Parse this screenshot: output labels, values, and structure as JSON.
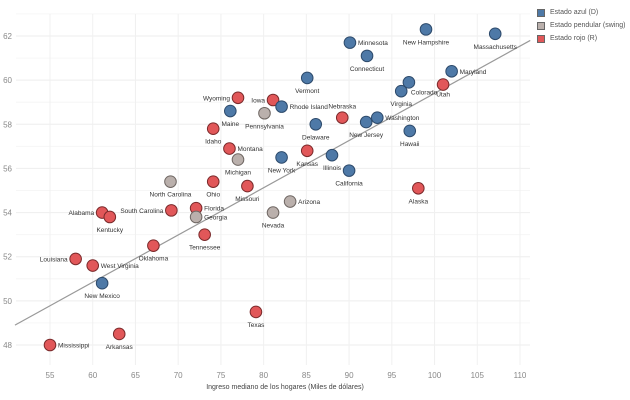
{
  "chart_data": {
    "type": "scatter",
    "title": "",
    "xlabel": "Ingreso mediano de los hogares (Miles de dólares)",
    "ylabel": "",
    "xlim": [
      51,
      112
    ],
    "ylim": [
      47,
      63
    ],
    "xticks": [
      55,
      60,
      65,
      70,
      75,
      80,
      85,
      90,
      95,
      100,
      105,
      110
    ],
    "yticks": [
      48,
      50,
      52,
      54,
      56,
      58,
      60,
      62
    ],
    "grid": true,
    "legend_position": "top-right",
    "legend": [
      {
        "key": "D",
        "label": "Estado azul (D)",
        "color": "#4e79a7"
      },
      {
        "key": "S",
        "label": "Estado pendular (swing)",
        "color": "#bab0ac"
      },
      {
        "key": "R",
        "label": "Estado rojo (R)",
        "color": "#e15759"
      }
    ],
    "trend_line": {
      "x": [
        50.9,
        111.2
      ],
      "y": [
        48.9,
        61.8
      ]
    },
    "points": [
      {
        "name": "Mississippi",
        "x": 55.0,
        "y": 48.0,
        "group": "R",
        "label_pos": "right"
      },
      {
        "name": "Arkansas",
        "x": 63.1,
        "y": 48.5,
        "group": "R",
        "label_pos": "below"
      },
      {
        "name": "Texas",
        "x": 79.1,
        "y": 49.5,
        "group": "R",
        "label_pos": "below"
      },
      {
        "name": "New Mexico",
        "x": 61.1,
        "y": 50.8,
        "group": "D",
        "label_pos": "below"
      },
      {
        "name": "Louisiana",
        "x": 58.0,
        "y": 51.9,
        "group": "R",
        "label_pos": "left"
      },
      {
        "name": "West Virginia",
        "x": 60.0,
        "y": 51.6,
        "group": "R",
        "label_pos": "right"
      },
      {
        "name": "Oklahoma",
        "x": 67.1,
        "y": 52.5,
        "group": "R",
        "label_pos": "below"
      },
      {
        "name": "Tennessee",
        "x": 73.1,
        "y": 53.0,
        "group": "R",
        "label_pos": "below"
      },
      {
        "name": "Alabama",
        "x": 61.1,
        "y": 54.0,
        "group": "R",
        "label_pos": "left"
      },
      {
        "name": "Kentucky",
        "x": 62.0,
        "y": 53.8,
        "group": "R",
        "label_pos": "below"
      },
      {
        "name": "South Carolina",
        "x": 69.2,
        "y": 54.1,
        "group": "R",
        "label_pos": "left"
      },
      {
        "name": "Florida",
        "x": 72.1,
        "y": 54.2,
        "group": "R",
        "label_pos": "right"
      },
      {
        "name": "Georgia",
        "x": 72.1,
        "y": 53.8,
        "group": "S",
        "label_pos": "right"
      },
      {
        "name": "North Carolina",
        "x": 69.1,
        "y": 55.4,
        "group": "S",
        "label_pos": "below"
      },
      {
        "name": "Ohio",
        "x": 74.1,
        "y": 55.4,
        "group": "R",
        "label_pos": "below"
      },
      {
        "name": "Missouri",
        "x": 78.1,
        "y": 55.2,
        "group": "R",
        "label_pos": "below"
      },
      {
        "name": "Michigan",
        "x": 77.0,
        "y": 56.4,
        "group": "S",
        "label_pos": "below"
      },
      {
        "name": "Montana",
        "x": 76.0,
        "y": 56.9,
        "group": "R",
        "label_pos": "right"
      },
      {
        "name": "Nevada",
        "x": 81.1,
        "y": 54.0,
        "group": "S",
        "label_pos": "below"
      },
      {
        "name": "Arizona",
        "x": 83.1,
        "y": 54.5,
        "group": "S",
        "label_pos": "right"
      },
      {
        "name": "New York",
        "x": 82.1,
        "y": 56.5,
        "group": "D",
        "label_pos": "below"
      },
      {
        "name": "Kansas",
        "x": 85.1,
        "y": 56.8,
        "group": "R",
        "label_pos": "below"
      },
      {
        "name": "Illinois",
        "x": 88.0,
        "y": 56.6,
        "group": "D",
        "label_pos": "below"
      },
      {
        "name": "California",
        "x": 90.0,
        "y": 55.9,
        "group": "D",
        "label_pos": "below"
      },
      {
        "name": "Alaska",
        "x": 98.1,
        "y": 55.1,
        "group": "R",
        "label_pos": "below"
      },
      {
        "name": "Idaho",
        "x": 74.1,
        "y": 57.8,
        "group": "R",
        "label_pos": "below"
      },
      {
        "name": "Maine",
        "x": 76.1,
        "y": 58.6,
        "group": "D",
        "label_pos": "below"
      },
      {
        "name": "Wyoming",
        "x": 77.0,
        "y": 59.2,
        "group": "R",
        "label_pos": "left"
      },
      {
        "name": "Iowa",
        "x": 81.1,
        "y": 59.1,
        "group": "R",
        "label_pos": "left"
      },
      {
        "name": "Pennsylvania",
        "x": 80.1,
        "y": 58.5,
        "group": "S",
        "label_pos": "below"
      },
      {
        "name": "Rhode Island",
        "x": 82.1,
        "y": 58.8,
        "group": "D",
        "label_pos": "right"
      },
      {
        "name": "Vermont",
        "x": 85.1,
        "y": 60.1,
        "group": "D",
        "label_pos": "below"
      },
      {
        "name": "Delaware",
        "x": 86.1,
        "y": 58.0,
        "group": "D",
        "label_pos": "below"
      },
      {
        "name": "Nebraska",
        "x": 89.2,
        "y": 58.3,
        "group": "R",
        "label_pos": "above"
      },
      {
        "name": "New Jersey",
        "x": 92.0,
        "y": 58.1,
        "group": "D",
        "label_pos": "below"
      },
      {
        "name": "Washington",
        "x": 93.3,
        "y": 58.3,
        "group": "D",
        "label_pos": "right"
      },
      {
        "name": "Hawaii",
        "x": 97.1,
        "y": 57.7,
        "group": "D",
        "label_pos": "below"
      },
      {
        "name": "Virginia",
        "x": 96.1,
        "y": 59.5,
        "group": "D",
        "label_pos": "below"
      },
      {
        "name": "Colorado",
        "x": 97.0,
        "y": 59.9,
        "group": "D",
        "label_pos": "below-right"
      },
      {
        "name": "Maryland",
        "x": 102.0,
        "y": 60.4,
        "group": "D",
        "label_pos": "right"
      },
      {
        "name": "Utah",
        "x": 101.0,
        "y": 59.8,
        "group": "R",
        "label_pos": "below-left"
      },
      {
        "name": "Minnesota",
        "x": 90.1,
        "y": 61.7,
        "group": "D",
        "label_pos": "right"
      },
      {
        "name": "Connecticut",
        "x": 92.1,
        "y": 61.1,
        "group": "D",
        "label_pos": "below"
      },
      {
        "name": "New Hampshire",
        "x": 99.0,
        "y": 62.3,
        "group": "D",
        "label_pos": "below"
      },
      {
        "name": "Massachusetts",
        "x": 107.1,
        "y": 62.1,
        "group": "D",
        "label_pos": "below"
      }
    ]
  },
  "legend": {
    "items": [
      {
        "label": "Estado azul (D)",
        "color": "#4e79a7"
      },
      {
        "label": "Estado pendular (swing)",
        "color": "#bab0ac"
      },
      {
        "label": "Estado rojo (R)",
        "color": "#e15759"
      }
    ]
  }
}
